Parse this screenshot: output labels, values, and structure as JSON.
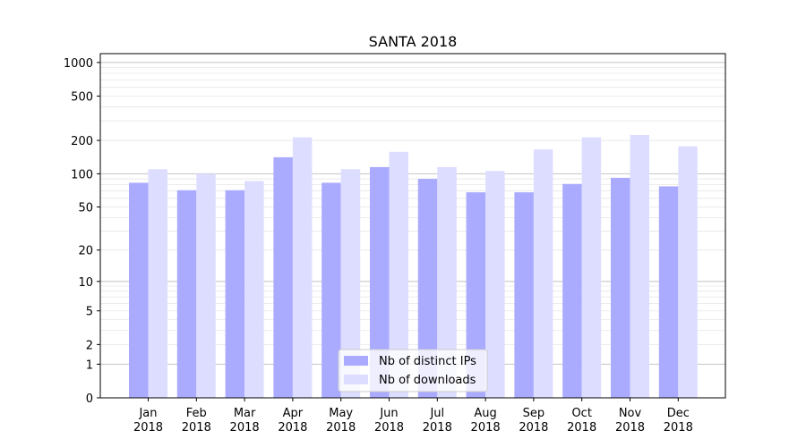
{
  "chart_data": {
    "type": "bar",
    "title": "SANTA 2018",
    "xlabel": "",
    "ylabel": "",
    "y_scale": "log1p",
    "ylim": [
      0,
      1200
    ],
    "y_ticks": [
      0,
      1,
      2,
      5,
      10,
      20,
      50,
      100,
      200,
      500,
      1000
    ],
    "grid": true,
    "legend_position": "lower center",
    "categories": [
      [
        "Jan",
        "2018"
      ],
      [
        "Feb",
        "2018"
      ],
      [
        "Mar",
        "2018"
      ],
      [
        "Apr",
        "2018"
      ],
      [
        "May",
        "2018"
      ],
      [
        "Jun",
        "2018"
      ],
      [
        "Jul",
        "2018"
      ],
      [
        "Aug",
        "2018"
      ],
      [
        "Sep",
        "2018"
      ],
      [
        "Oct",
        "2018"
      ],
      [
        "Nov",
        "2018"
      ],
      [
        "Dec",
        "2018"
      ]
    ],
    "series": [
      {
        "name": "Nb of distinct IPs",
        "color": "#aaaaff",
        "values": [
          83,
          71,
          71,
          141,
          83,
          115,
          90,
          68,
          68,
          81,
          92,
          77
        ]
      },
      {
        "name": "Nb of downloads",
        "color": "#ddddff",
        "values": [
          110,
          100,
          86,
          213,
          110,
          158,
          115,
          106,
          166,
          213,
          224,
          177
        ]
      }
    ]
  }
}
